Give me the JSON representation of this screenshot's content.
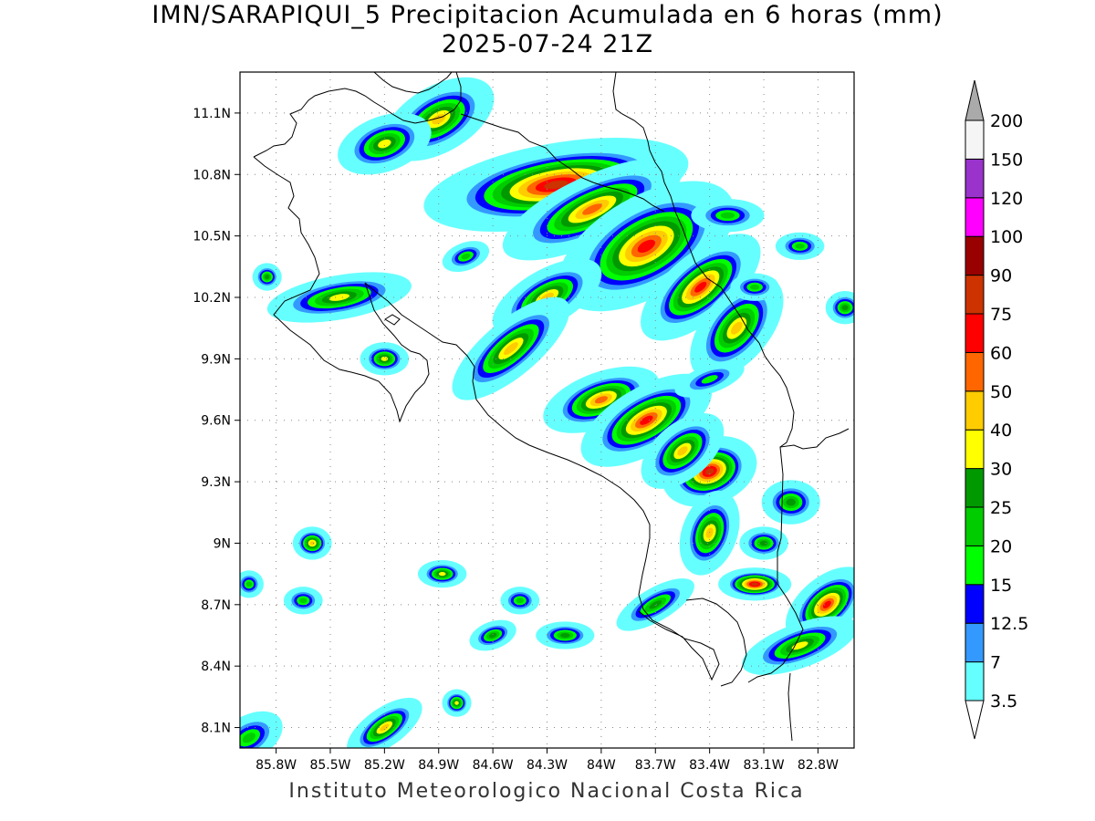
{
  "title": {
    "line1": "IMN/SARAPIQUI_5 Precipitacion Acumulada en 6 horas (mm)",
    "line2": "2025-07-24 21Z"
  },
  "footer": "Instituto Meteorologico Nacional Costa Rica",
  "map": {
    "lon_range": [
      -86.0,
      -82.6
    ],
    "lat_range": [
      8.0,
      11.3
    ],
    "lon_ticks": [
      -85.8,
      -85.5,
      -85.2,
      -84.9,
      -84.6,
      -84.3,
      -84.0,
      -83.7,
      -83.4,
      -83.1,
      -82.8
    ],
    "lon_tick_labels": [
      "85.8W",
      "85.5W",
      "85.2W",
      "84.9W",
      "84.6W",
      "84.3W",
      "84W",
      "83.7W",
      "83.4W",
      "83.1W",
      "82.8W"
    ],
    "lat_ticks": [
      8.1,
      8.4,
      8.7,
      9.0,
      9.3,
      9.6,
      9.9,
      10.2,
      10.5,
      10.8,
      11.1
    ],
    "lat_tick_labels": [
      "8.1N",
      "8.4N",
      "8.7N",
      "9N",
      "9.3N",
      "9.6N",
      "9.9N",
      "10.2N",
      "10.5N",
      "10.8N",
      "11.1N"
    ],
    "grid": true
  },
  "colorbar": {
    "levels": [
      "3.5",
      "7",
      "12.5",
      "15",
      "20",
      "25",
      "30",
      "40",
      "50",
      "60",
      "75",
      "90",
      "100",
      "120",
      "150",
      "200"
    ],
    "colors": [
      "#66ffff",
      "#3399ff",
      "#0000ff",
      "#00ff00",
      "#00cc00",
      "#009900",
      "#ffff00",
      "#ffcc00",
      "#ff6600",
      "#ff0000",
      "#cc3300",
      "#990000",
      "#ff00ff",
      "#9933cc",
      "#f5f5f5"
    ],
    "max_cap_color": "#aaaaaa",
    "min_cap_color": "#ffffff"
  },
  "precip_cells": [
    {
      "lon": -84.25,
      "lat": 10.75,
      "a": 0.55,
      "b": 0.15,
      "rot": -10,
      "peak": 75
    },
    {
      "lon": -84.05,
      "lat": 10.63,
      "a": 0.4,
      "b": 0.12,
      "rot": -25,
      "peak": 50
    },
    {
      "lon": -83.75,
      "lat": 10.45,
      "a": 0.4,
      "b": 0.18,
      "rot": -30,
      "peak": 60
    },
    {
      "lon": -83.45,
      "lat": 10.25,
      "a": 0.3,
      "b": 0.12,
      "rot": -40,
      "peak": 60
    },
    {
      "lon": -83.25,
      "lat": 10.05,
      "a": 0.25,
      "b": 0.12,
      "rot": -50,
      "peak": 40
    },
    {
      "lon": -84.9,
      "lat": 11.07,
      "a": 0.25,
      "b": 0.12,
      "rot": -30,
      "peak": 40
    },
    {
      "lon": -85.2,
      "lat": 10.95,
      "a": 0.2,
      "b": 0.1,
      "rot": -20,
      "peak": 30
    },
    {
      "lon": -84.3,
      "lat": 10.2,
      "a": 0.25,
      "b": 0.1,
      "rot": -30,
      "peak": 40
    },
    {
      "lon": -84.5,
      "lat": 9.95,
      "a": 0.3,
      "b": 0.1,
      "rot": -40,
      "peak": 40
    },
    {
      "lon": -84.0,
      "lat": 9.7,
      "a": 0.25,
      "b": 0.1,
      "rot": -20,
      "peak": 50
    },
    {
      "lon": -83.75,
      "lat": 9.6,
      "a": 0.3,
      "b": 0.12,
      "rot": -30,
      "peak": 60
    },
    {
      "lon": -83.4,
      "lat": 9.35,
      "a": 0.2,
      "b": 0.12,
      "rot": -20,
      "peak": 75
    },
    {
      "lon": -83.55,
      "lat": 9.45,
      "a": 0.2,
      "b": 0.1,
      "rot": -40,
      "peak": 40
    },
    {
      "lon": -85.45,
      "lat": 10.2,
      "a": 0.3,
      "b": 0.08,
      "rot": -10,
      "peak": 30
    },
    {
      "lon": -85.2,
      "lat": 9.9,
      "a": 0.1,
      "b": 0.06,
      "rot": 0,
      "peak": 30
    },
    {
      "lon": -83.4,
      "lat": 9.05,
      "a": 0.18,
      "b": 0.1,
      "rot": -70,
      "peak": 40
    },
    {
      "lon": -83.15,
      "lat": 8.8,
      "a": 0.15,
      "b": 0.06,
      "rot": 0,
      "peak": 75
    },
    {
      "lon": -82.75,
      "lat": 8.7,
      "a": 0.2,
      "b": 0.1,
      "rot": -40,
      "peak": 60
    },
    {
      "lon": -82.9,
      "lat": 8.5,
      "a": 0.25,
      "b": 0.08,
      "rot": -20,
      "peak": 30
    },
    {
      "lon": -82.95,
      "lat": 9.2,
      "a": 0.12,
      "b": 0.08,
      "rot": 0,
      "peak": 25
    },
    {
      "lon": -83.1,
      "lat": 9.0,
      "a": 0.1,
      "b": 0.06,
      "rot": 0,
      "peak": 25
    },
    {
      "lon": -85.2,
      "lat": 8.1,
      "a": 0.18,
      "b": 0.07,
      "rot": -35,
      "peak": 40
    },
    {
      "lon": -85.95,
      "lat": 8.05,
      "a": 0.15,
      "b": 0.08,
      "rot": -30,
      "peak": 20
    },
    {
      "lon": -85.6,
      "lat": 9.0,
      "a": 0.08,
      "b": 0.06,
      "rot": 0,
      "peak": 40
    },
    {
      "lon": -84.88,
      "lat": 8.85,
      "a": 0.1,
      "b": 0.05,
      "rot": 0,
      "peak": 30
    },
    {
      "lon": -84.8,
      "lat": 8.22,
      "a": 0.06,
      "b": 0.05,
      "rot": 0,
      "peak": 30
    },
    {
      "lon": -84.6,
      "lat": 8.55,
      "a": 0.1,
      "b": 0.05,
      "rot": -20,
      "peak": 25
    },
    {
      "lon": -84.2,
      "lat": 8.55,
      "a": 0.12,
      "b": 0.05,
      "rot": 0,
      "peak": 25
    },
    {
      "lon": -84.45,
      "lat": 8.72,
      "a": 0.08,
      "b": 0.05,
      "rot": 0,
      "peak": 20
    },
    {
      "lon": -85.65,
      "lat": 8.72,
      "a": 0.08,
      "b": 0.05,
      "rot": 0,
      "peak": 20
    },
    {
      "lon": -85.95,
      "lat": 8.8,
      "a": 0.06,
      "b": 0.05,
      "rot": 0,
      "peak": 20
    },
    {
      "lon": -82.65,
      "lat": 10.15,
      "a": 0.08,
      "b": 0.06,
      "rot": 0,
      "peak": 25
    },
    {
      "lon": -83.15,
      "lat": 10.25,
      "a": 0.1,
      "b": 0.05,
      "rot": 0,
      "peak": 20
    },
    {
      "lon": -83.3,
      "lat": 10.6,
      "a": 0.15,
      "b": 0.06,
      "rot": 0,
      "peak": 20
    },
    {
      "lon": -82.9,
      "lat": 10.45,
      "a": 0.1,
      "b": 0.05,
      "rot": 0,
      "peak": 20
    },
    {
      "lon": -85.85,
      "lat": 10.3,
      "a": 0.06,
      "b": 0.05,
      "rot": 0,
      "peak": 25
    },
    {
      "lon": -84.75,
      "lat": 10.4,
      "a": 0.1,
      "b": 0.05,
      "rot": -20,
      "peak": 20
    },
    {
      "lon": -83.4,
      "lat": 9.8,
      "a": 0.15,
      "b": 0.05,
      "rot": -20,
      "peak": 15
    },
    {
      "lon": -83.7,
      "lat": 8.7,
      "a": 0.18,
      "b": 0.06,
      "rot": -30,
      "peak": 25
    }
  ]
}
